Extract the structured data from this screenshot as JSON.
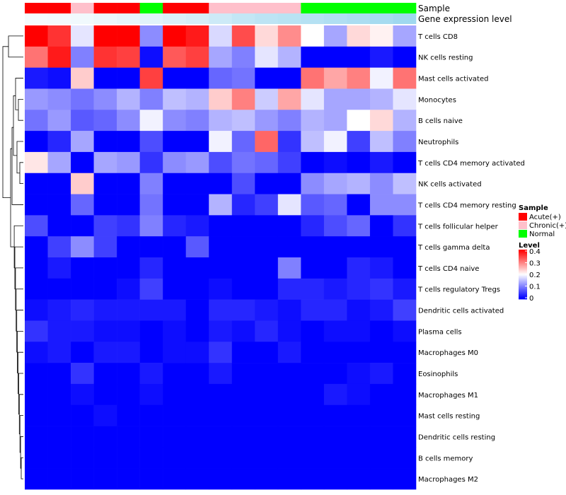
{
  "chart_data": {
    "type": "heatmap",
    "annotation_tracks": [
      {
        "name": "Sample",
        "values": [
          "Acute(+)",
          "Acute(+)",
          "Chronic(+)",
          "Acute(+)",
          "Acute(+)",
          "Normal",
          "Acute(+)",
          "Acute(+)",
          "Chronic(+)",
          "Chronic(+)",
          "Chronic(+)",
          "Chronic(+)",
          "Normal",
          "Normal",
          "Normal",
          "Normal",
          "Normal"
        ]
      },
      {
        "name": "Gene expression level",
        "values": [
          0.08,
          0.1,
          0.12,
          0.16,
          0.2,
          0.25,
          0.3,
          0.35,
          0.42,
          0.5,
          0.55,
          0.58,
          0.62,
          0.66,
          0.7,
          0.74,
          0.8
        ]
      }
    ],
    "rows": [
      "T cells CD8",
      "NK cells resting",
      "Mast cells activated",
      "Monocytes",
      "B cells naive",
      "Neutrophils",
      "T cells CD4 memory activated",
      "NK cells activated",
      "T cells CD4 memory resting",
      "T cells follicular helper",
      "T cells gamma delta",
      "T cells CD4 naive",
      "T cells regulatory  Tregs",
      "Dendritic cells activated",
      "Plasma cells",
      "Macrophages M0",
      "Eosinophils",
      "Macrophages M1",
      "Mast cells resting",
      "Dendritic cells resting",
      "B cells memory",
      "Macrophages M2"
    ],
    "values": [
      [
        0.4,
        0.36,
        0.18,
        0.4,
        0.4,
        0.11,
        0.4,
        0.38,
        0.17,
        0.34,
        0.23,
        0.29,
        0.2,
        0.13,
        0.23,
        0.21,
        0.13
      ],
      [
        0.31,
        0.38,
        0.1,
        0.36,
        0.35,
        0.01,
        0.33,
        0.35,
        0.13,
        0.1,
        0.18,
        0.14,
        0.0,
        0.0,
        0.0,
        0.02,
        0.0
      ],
      [
        0.02,
        0.01,
        0.24,
        0.0,
        0.0,
        0.35,
        0.0,
        0.0,
        0.08,
        0.09,
        0.0,
        0.0,
        0.31,
        0.27,
        0.3,
        0.19,
        0.31
      ],
      [
        0.12,
        0.11,
        0.09,
        0.11,
        0.14,
        0.1,
        0.15,
        0.14,
        0.24,
        0.3,
        0.16,
        0.27,
        0.18,
        0.13,
        0.13,
        0.14,
        0.18
      ],
      [
        0.09,
        0.12,
        0.07,
        0.08,
        0.11,
        0.19,
        0.11,
        0.1,
        0.14,
        0.15,
        0.12,
        0.1,
        0.14,
        0.13,
        0.2,
        0.23,
        0.14
      ],
      [
        0.0,
        0.03,
        0.13,
        0.0,
        0.0,
        0.06,
        0.0,
        0.0,
        0.19,
        0.08,
        0.32,
        0.04,
        0.15,
        0.19,
        0.05,
        0.15,
        0.1
      ],
      [
        0.22,
        0.13,
        0.0,
        0.13,
        0.12,
        0.04,
        0.11,
        0.12,
        0.06,
        0.09,
        0.08,
        0.05,
        0.0,
        0.01,
        0.0,
        0.02,
        0.0
      ],
      [
        0.0,
        0.0,
        0.24,
        0.0,
        0.0,
        0.1,
        0.0,
        0.0,
        0.0,
        0.06,
        0.0,
        0.0,
        0.11,
        0.13,
        0.14,
        0.11,
        0.15
      ],
      [
        0.0,
        0.0,
        0.08,
        0.0,
        0.0,
        0.09,
        0.0,
        0.0,
        0.14,
        0.03,
        0.05,
        0.18,
        0.07,
        0.08,
        0.0,
        0.11,
        0.11
      ],
      [
        0.06,
        0.0,
        0.0,
        0.05,
        0.04,
        0.1,
        0.03,
        0.02,
        0.0,
        0.0,
        0.0,
        0.0,
        0.03,
        0.06,
        0.08,
        0.0,
        0.04
      ],
      [
        0.0,
        0.05,
        0.11,
        0.05,
        0.0,
        0.0,
        0.0,
        0.07,
        0.0,
        0.0,
        0.0,
        0.0,
        0.0,
        0.0,
        0.0,
        0.0,
        0.0
      ],
      [
        0.0,
        0.02,
        0.0,
        0.0,
        0.0,
        0.03,
        0.0,
        0.0,
        0.0,
        0.0,
        0.0,
        0.1,
        0.0,
        0.0,
        0.03,
        0.02,
        0.0
      ],
      [
        0.0,
        0.0,
        0.0,
        0.0,
        0.01,
        0.05,
        0.0,
        0.0,
        0.01,
        0.0,
        0.0,
        0.03,
        0.03,
        0.02,
        0.03,
        0.04,
        0.02
      ],
      [
        0.01,
        0.02,
        0.03,
        0.02,
        0.02,
        0.02,
        0.02,
        0.0,
        0.03,
        0.03,
        0.02,
        0.01,
        0.03,
        0.03,
        0.01,
        0.02,
        0.05
      ],
      [
        0.04,
        0.02,
        0.02,
        0.01,
        0.01,
        0.0,
        0.01,
        0.0,
        0.02,
        0.01,
        0.03,
        0.01,
        0.0,
        0.01,
        0.01,
        0.0,
        0.01
      ],
      [
        0.01,
        0.02,
        0.0,
        0.02,
        0.02,
        0.0,
        0.01,
        0.01,
        0.04,
        0.0,
        0.0,
        0.02,
        0.0,
        0.0,
        0.0,
        0.0,
        0.0
      ],
      [
        0.0,
        0.0,
        0.04,
        0.0,
        0.0,
        0.02,
        0.0,
        0.0,
        0.02,
        0.0,
        0.0,
        0.0,
        0.0,
        0.0,
        0.01,
        0.02,
        0.0
      ],
      [
        0.0,
        0.0,
        0.01,
        0.0,
        0.0,
        0.01,
        0.0,
        0.0,
        0.0,
        0.0,
        0.0,
        0.0,
        0.0,
        0.02,
        0.01,
        0.0,
        0.0
      ],
      [
        0.0,
        0.0,
        0.0,
        0.01,
        0.0,
        0.0,
        0.0,
        0.0,
        0.0,
        0.0,
        0.0,
        0.0,
        0.0,
        0.0,
        0.0,
        0.0,
        0.0
      ],
      [
        0.0,
        0.0,
        0.0,
        0.0,
        0.0,
        0.0,
        0.0,
        0.0,
        0.0,
        0.0,
        0.0,
        0.0,
        0.0,
        0.0,
        0.0,
        0.0,
        0.0
      ],
      [
        0.0,
        0.0,
        0.0,
        0.0,
        0.0,
        0.0,
        0.0,
        0.0,
        0.0,
        0.0,
        0.0,
        0.0,
        0.0,
        0.0,
        0.0,
        0.0,
        0.0
      ],
      [
        0.0,
        0.0,
        0.0,
        0.0,
        0.0,
        0.0,
        0.0,
        0.0,
        0.0,
        0.0,
        0.0,
        0.0,
        0.0,
        0.0,
        0.0,
        0.0,
        0.0
      ]
    ],
    "color_scale": {
      "stops": [
        {
          "value": 0.0,
          "color": "#0000ff"
        },
        {
          "value": 0.2,
          "color": "#ffffff"
        },
        {
          "value": 0.4,
          "color": "#ff0000"
        }
      ],
      "range": [
        0,
        0.4
      ]
    },
    "legend": {
      "placement": "right",
      "sample": {
        "title": "Sample",
        "entries": [
          {
            "label": "Acute(+)",
            "color": "#ff0000"
          },
          {
            "label": "Chronic(+)",
            "color": "#ffc0cb"
          },
          {
            "label": "Normal",
            "color": "#00ff00"
          }
        ]
      },
      "level": {
        "title": "Level",
        "ticks": [
          "0.4",
          "0.3",
          "0.2",
          "0.1",
          "0"
        ]
      }
    },
    "gene_level_colors": {
      "low": "#ffffff",
      "high": "#87ceeb"
    },
    "dendrogram": "row"
  }
}
